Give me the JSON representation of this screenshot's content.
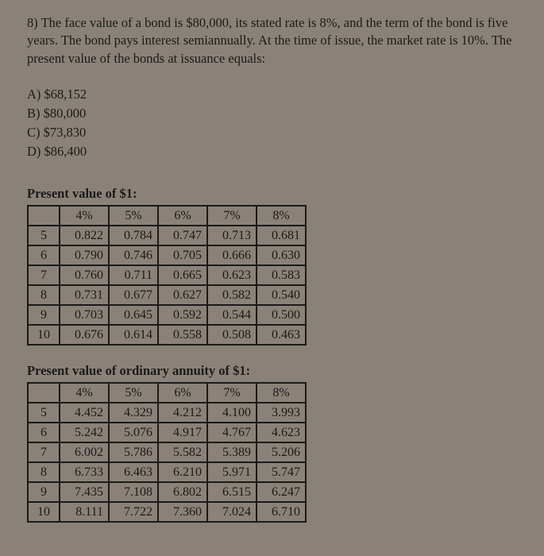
{
  "question": "8) The face value of a bond is $80,000, its stated rate is 8%, and the term of the bond is five years. The bond pays interest semiannually. At the time of issue, the market rate is 10%. The present value of the bonds at issuance equals:",
  "choices": {
    "a": "A) $68,152",
    "b": "B) $80,000",
    "c": "C) $73,830",
    "d": "D) $86,400"
  },
  "pv_single": {
    "title": "Present value of $1:",
    "rates": [
      "4%",
      "5%",
      "6%",
      "7%",
      "8%"
    ],
    "periods": [
      "5",
      "6",
      "7",
      "8",
      "9",
      "10"
    ],
    "rows": [
      [
        "0.822",
        "0.784",
        "0.747",
        "0.713",
        "0.681"
      ],
      [
        "0.790",
        "0.746",
        "0.705",
        "0.666",
        "0.630"
      ],
      [
        "0.760",
        "0.711",
        "0.665",
        "0.623",
        "0.583"
      ],
      [
        "0.731",
        "0.677",
        "0.627",
        "0.582",
        "0.540"
      ],
      [
        "0.703",
        "0.645",
        "0.592",
        "0.544",
        "0.500"
      ],
      [
        "0.676",
        "0.614",
        "0.558",
        "0.508",
        "0.463"
      ]
    ]
  },
  "pv_annuity": {
    "title": "Present value of ordinary annuity of $1:",
    "rates": [
      "4%",
      "5%",
      "6%",
      "7%",
      "8%"
    ],
    "periods": [
      "5",
      "6",
      "7",
      "8",
      "9",
      "10"
    ],
    "rows": [
      [
        "4.452",
        "4.329",
        "4.212",
        "4.100",
        "3.993"
      ],
      [
        "5.242",
        "5.076",
        "4.917",
        "4.767",
        "4.623"
      ],
      [
        "6.002",
        "5.786",
        "5.582",
        "5.389",
        "5.206"
      ],
      [
        "6.733",
        "6.463",
        "6.210",
        "5.971",
        "5.747"
      ],
      [
        "7.435",
        "7.108",
        "6.802",
        "6.515",
        "6.247"
      ],
      [
        "8.111",
        "7.722",
        "7.360",
        "7.024",
        "6.710"
      ]
    ]
  }
}
